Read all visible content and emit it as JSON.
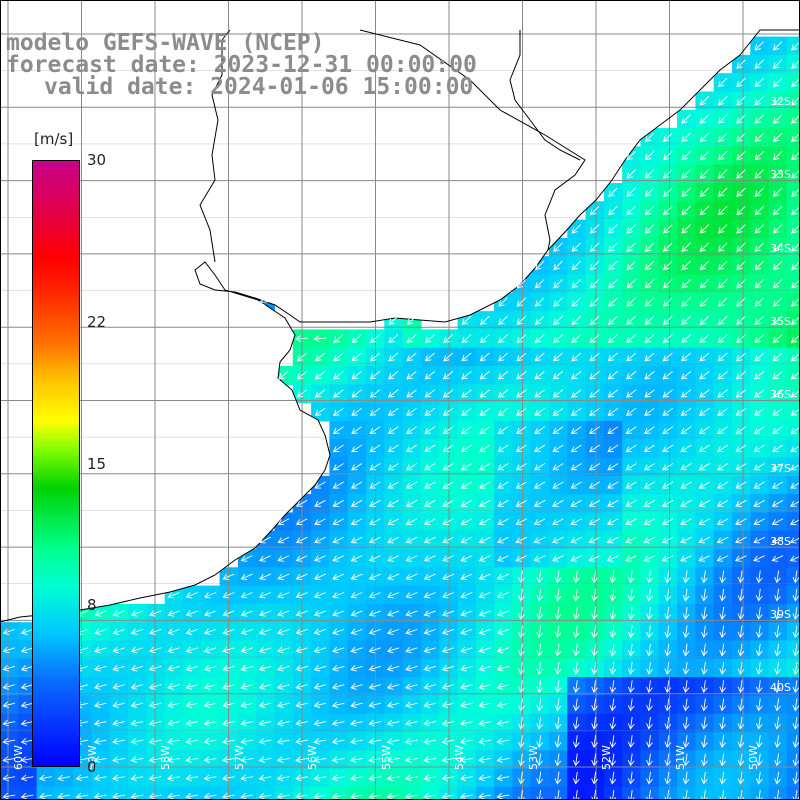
{
  "title": {
    "line1": "modelo GEFS-WAVE (NCEP)",
    "line2": "forecast date: 2023-12-31 00:00:00",
    "line3": "valid date: 2024-01-06 15:00:00"
  },
  "colorbar": {
    "units": "[m/s]",
    "min": 0,
    "max": 30,
    "ticks": [
      "30",
      "22",
      "15",
      "8",
      "0"
    ],
    "tick_values": [
      30,
      22,
      15,
      8,
      0
    ],
    "colors": [
      "#0000ff",
      "#00c8ff",
      "#00ffd0",
      "#00d200",
      "#ffff00",
      "#ff7000",
      "#ff0000",
      "#c8008c"
    ]
  },
  "map": {
    "background_land": "#ffffff",
    "grid_color": "#8a8a8a",
    "coast_color": "#000000",
    "vector_color": "#ffffff",
    "prevailing_wind": "southwesterly-pointing arrows (from northeast)",
    "lat_labels": [
      "32S",
      "33S",
      "34S",
      "35S",
      "36S",
      "37S",
      "38S",
      "39S",
      "40S"
    ],
    "lon_labels": [
      "60W",
      "59W",
      "58W",
      "57W",
      "56W",
      "55W",
      "54W",
      "53W",
      "52W",
      "51W",
      "50W"
    ]
  }
}
